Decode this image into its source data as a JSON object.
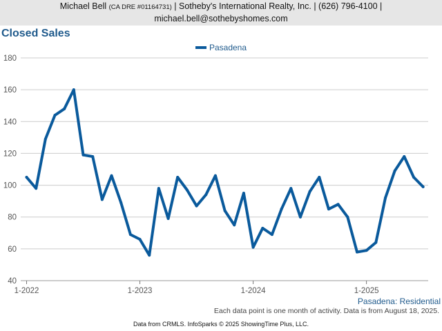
{
  "header": {
    "line1_name": "Michael Bell",
    "line1_dre": "(CA DRE #01164731)",
    "line1_rest": "| Sotheby's International Realty, Inc. | (626) 796-4100 |",
    "line2": "michael.bell@sothebyshomes.com"
  },
  "series_label": "Pasadena: Residential",
  "note": "Each data point is one month of activity. Data is from August 18, 2025.",
  "footer": "Data from CRMLS. InfoSparks © 2025 ShowingTime Plus, LLC.",
  "colors": {
    "line": "#0a5a9c",
    "title": "#1f5a8c",
    "grid": "#cccccc"
  },
  "chart_data": {
    "type": "line",
    "title": "Closed Sales",
    "legend_position": "top-center",
    "grid": true,
    "ylim": [
      40,
      180
    ],
    "y_ticks": [
      40,
      60,
      80,
      100,
      120,
      140,
      160,
      180
    ],
    "x_tick_labels": [
      {
        "label": "1-2022",
        "index": 0
      },
      {
        "label": "1-2023",
        "index": 12
      },
      {
        "label": "1-2024",
        "index": 24
      },
      {
        "label": "1-2025",
        "index": 36
      }
    ],
    "x_start": "2022-01",
    "series": [
      {
        "name": "Pasadena",
        "values": [
          105,
          98,
          129,
          144,
          148,
          160,
          119,
          118,
          91,
          106,
          89,
          69,
          66,
          56,
          98,
          79,
          105,
          97,
          87,
          94,
          106,
          84,
          75,
          95,
          61,
          73,
          69,
          85,
          98,
          80,
          96,
          105,
          85,
          88,
          80,
          58,
          59,
          64,
          92,
          109,
          118,
          105,
          99
        ]
      }
    ]
  }
}
